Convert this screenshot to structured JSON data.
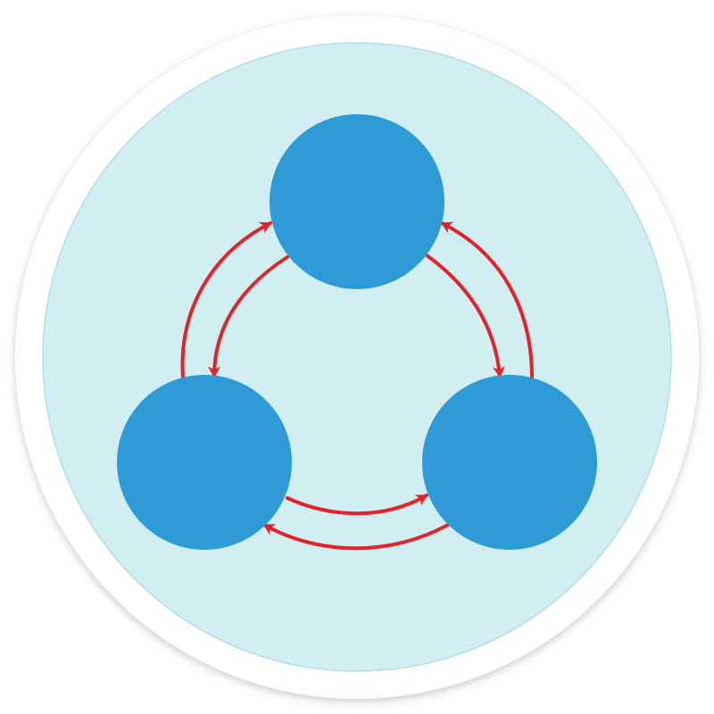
{
  "colors": {
    "page_background": "#ffffff",
    "outer_ring": "#ffffff",
    "ring_shadow": "#c9cfd1",
    "disc_fill": "#d1eff3",
    "disc_edge": "#b7dde3",
    "node_fill": "#2e9bd6",
    "arrow_stroke": "#e2232a"
  },
  "icons": {
    "outer_badge": "circle-badge",
    "node_shape": "circle",
    "connector": "curved-arrow"
  },
  "nodes": [
    {
      "id": "top",
      "label": ""
    },
    {
      "id": "left",
      "label": ""
    },
    {
      "id": "right",
      "label": ""
    }
  ],
  "connections": [
    {
      "from": "left",
      "to": "top",
      "direction": "one-way"
    },
    {
      "from": "top",
      "to": "left",
      "direction": "one-way"
    },
    {
      "from": "top",
      "to": "right",
      "direction": "one-way"
    },
    {
      "from": "right",
      "to": "top",
      "direction": "one-way"
    },
    {
      "from": "left",
      "to": "right",
      "direction": "one-way"
    },
    {
      "from": "right",
      "to": "left",
      "direction": "one-way"
    }
  ]
}
